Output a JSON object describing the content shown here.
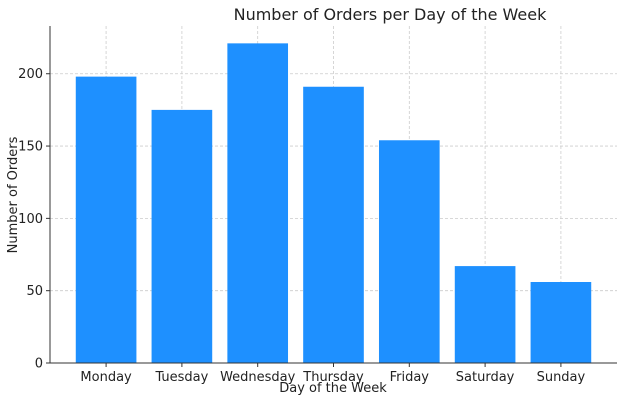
{
  "chart_data": {
    "type": "bar",
    "title": "Number of Orders per Day of the Week",
    "xlabel": "Day of the Week",
    "ylabel": "Number of Orders",
    "categories": [
      "Monday",
      "Tuesday",
      "Wednesday",
      "Thursday",
      "Friday",
      "Saturday",
      "Sunday"
    ],
    "values": [
      198,
      175,
      221,
      191,
      154,
      67,
      56
    ],
    "yticks": [
      0,
      50,
      100,
      150,
      200
    ],
    "ylim": [
      0,
      233
    ],
    "grid": true,
    "bar_color": "#1E90FF"
  }
}
